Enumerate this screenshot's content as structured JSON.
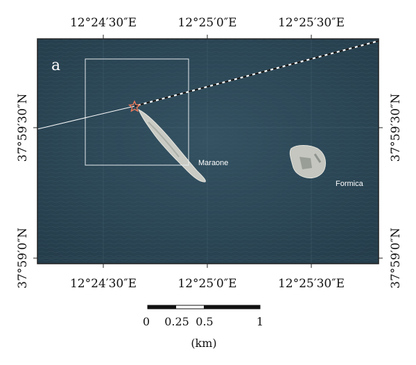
{
  "map": {
    "panel_label": "a",
    "colors": {
      "sea": "#2d4858",
      "sea_dark": "#223a48",
      "island": "#c7c9c2",
      "frame": "#222222"
    },
    "top_labels": [
      "12°24′30″E",
      "12°25′0″E",
      "12°25′30″E"
    ],
    "bottom_labels": [
      "12°24′30″E",
      "12°25′0″E",
      "12°25′30″E"
    ],
    "left_labels": [
      "37°59′30″N",
      "37°59′0″N"
    ],
    "right_labels": [
      "37°59′30″N",
      "37°59′0″N"
    ],
    "places": {
      "maraone": "Maraone",
      "formica": "Formica"
    },
    "marker": "star-icon",
    "scale_bar": {
      "ticks": [
        "0",
        "0.25",
        "0.5",
        "1"
      ],
      "unit": "(km)"
    }
  }
}
